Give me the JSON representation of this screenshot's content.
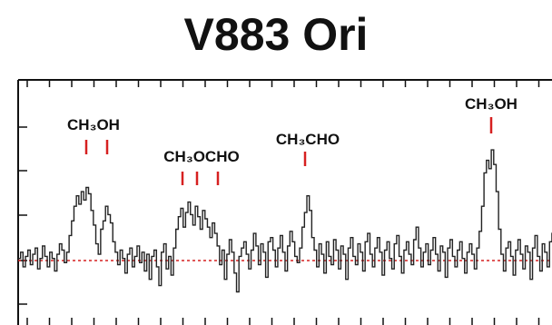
{
  "chart_data": {
    "type": "line",
    "title": "V883 Ori",
    "xlabel": "",
    "ylabel": "",
    "grid": false,
    "baseline": 0,
    "colors": {
      "trace": "#222222",
      "baseline": "#d62020",
      "markers": "#d62020",
      "axes": "#111111"
    },
    "annotations": [
      {
        "label": "CH₃OH",
        "markers": [
          1,
          2
        ]
      },
      {
        "label": "CH₃OCHO",
        "markers": [
          3,
          4,
          5
        ]
      },
      {
        "label": "CH₃CHO",
        "markers": [
          6
        ]
      },
      {
        "label": "CH₃OH",
        "markers": [
          7
        ]
      }
    ],
    "series": [
      {
        "values": [
          0.1,
          0.4,
          -0.3,
          0.2,
          0.5,
          -0.2,
          0.3,
          0.6,
          -0.4,
          0.1,
          0.7,
          0.2,
          -0.3,
          0.4,
          0.1,
          -0.5,
          0.3,
          0.8,
          0.5,
          -0.1,
          0.4,
          1.2,
          1.9,
          2.6,
          3.1,
          2.7,
          3.3,
          2.9,
          3.5,
          3.2,
          2.4,
          1.7,
          0.8,
          0.3,
          1.5,
          1.9,
          2.6,
          2.2,
          1.8,
          0.9,
          0.4,
          -0.2,
          0.5,
          0.1,
          -0.6,
          0.3,
          0.6,
          -0.3,
          0.2,
          0.7,
          -0.1,
          0.4,
          -0.5,
          0.3,
          -0.9,
          0.2,
          0.5,
          -0.3,
          -1.2,
          0.4,
          0.8,
          -0.4,
          0.2,
          -0.7,
          0.6,
          1.5,
          2.1,
          2.5,
          1.6,
          2.3,
          2.8,
          2.2,
          1.7,
          2.6,
          2.1,
          1.5,
          2.4,
          2.0,
          1.6,
          1.1,
          1.8,
          1.3,
          0.7,
          -0.2,
          0.5,
          -0.9,
          0.3,
          1.0,
          0.4,
          -0.6,
          -1.5,
          0.2,
          0.6,
          0.9,
          0.3,
          -0.4,
          0.5,
          1.3,
          0.7,
          -0.2,
          0.8,
          0.4,
          -0.8,
          0.9,
          1.1,
          0.5,
          -0.3,
          0.6,
          1.2,
          0.4,
          -0.5,
          0.7,
          1.4,
          0.9,
          0.2,
          -0.1,
          0.6,
          1.6,
          2.3,
          3.1,
          2.4,
          1.1,
          0.5,
          -0.3,
          0.8,
          0.3,
          -0.6,
          0.9,
          0.2,
          -0.2,
          1.0,
          0.5,
          -0.4,
          0.7,
          0.3,
          -0.9,
          0.6,
          1.1,
          0.2,
          -0.2,
          0.8,
          0.4,
          -0.5,
          0.9,
          1.3,
          0.3,
          -0.3,
          0.6,
          1.1,
          0.4,
          -0.7,
          0.5,
          0.9,
          0.1,
          -0.4,
          0.8,
          1.2,
          0.2,
          -0.6,
          0.5,
          0.9,
          0.3,
          -0.2,
          1.0,
          1.6,
          0.6,
          -0.3,
          0.4,
          0.8,
          -0.2,
          0.5,
          1.1,
          0.3,
          -0.5,
          0.7,
          0.4,
          -0.8,
          0.6,
          1.0,
          0.2,
          -0.3,
          0.5,
          0.9,
          0.1,
          -0.6,
          0.4,
          0.8,
          0.3,
          -0.4,
          0.6,
          1.4,
          2.6,
          4.2,
          4.8,
          4.4,
          5.3,
          4.6,
          3.3,
          1.5,
          0.3,
          -0.5,
          0.6,
          0.9,
          0.2,
          -0.7,
          0.5,
          1.0,
          0.3,
          -0.4,
          0.7,
          0.4,
          -0.9,
          0.6,
          1.2,
          0.2,
          -0.5,
          0.8,
          0.4,
          -0.3,
          0.9,
          1.3,
          0.5,
          -0.6,
          0.3,
          0.8,
          0.4,
          -0.2,
          0.7,
          1.1,
          0.3,
          -0.8,
          0.5
        ]
      }
    ]
  }
}
